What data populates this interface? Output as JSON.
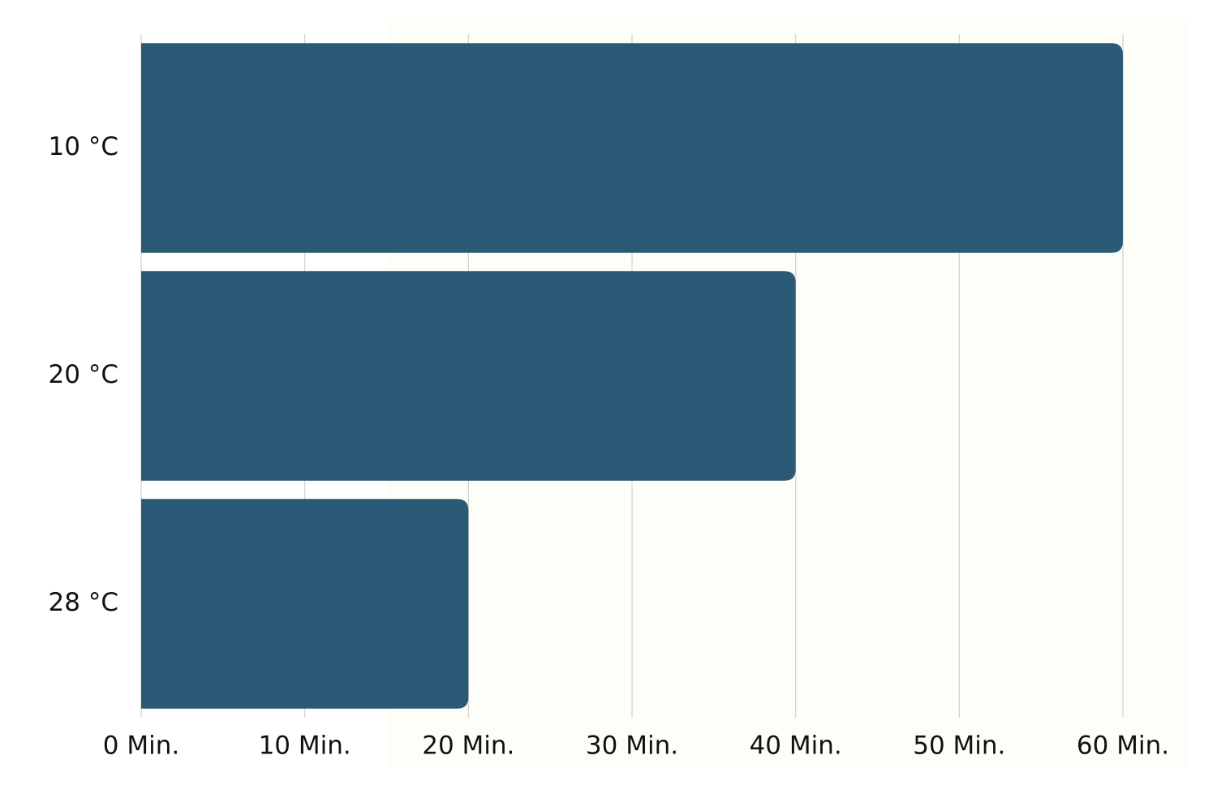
{
  "chart_data": {
    "type": "bar",
    "orientation": "horizontal",
    "categories": [
      "10 °C",
      "20 °C",
      "28 °C"
    ],
    "values": [
      60,
      40,
      20
    ],
    "color": "#2a5a75",
    "xlim": [
      0,
      60
    ],
    "xticks": [
      {
        "value": 0,
        "label": "0 Min."
      },
      {
        "value": 10,
        "label": "10 Min."
      },
      {
        "value": 20,
        "label": "20 Min."
      },
      {
        "value": 30,
        "label": "30 Min."
      },
      {
        "value": 40,
        "label": "40 Min."
      },
      {
        "value": 50,
        "label": "50 Min."
      },
      {
        "value": 60,
        "label": "60 Min."
      }
    ],
    "grid": true
  }
}
